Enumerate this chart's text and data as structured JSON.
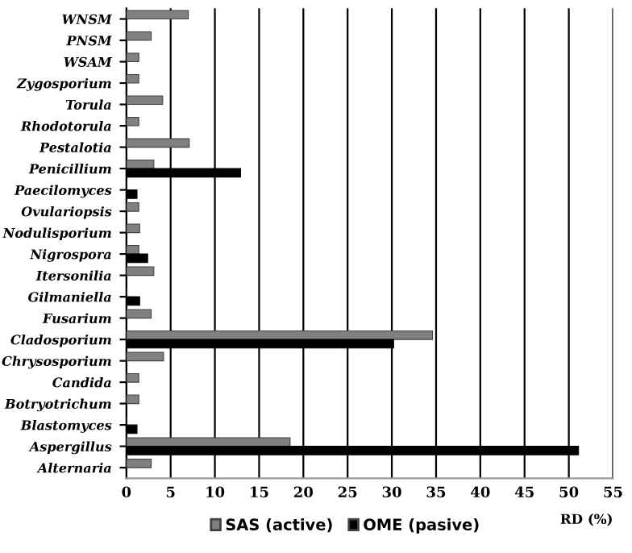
{
  "chart_data": {
    "type": "bar",
    "orientation": "horizontal",
    "xlabel": "RD (%)",
    "categories": [
      "WNSM",
      "PNSM",
      "WSAM",
      "Zygosporium",
      "Torula",
      "Rhodotorula",
      "Pestalotia",
      "Penicillium",
      "Paecilomyces",
      "Ovulariopsis",
      "Nodulisporium",
      "Nigrospora",
      "Itersonilia",
      "Gilmaniella",
      "Fusarium",
      "Cladosporium",
      "Chrysosporium",
      "Candida",
      "Botryotrichum",
      "Blastomyces",
      "Aspergillus",
      "Alternaria"
    ],
    "series": [
      {
        "name": "SAS (active)",
        "color": "#808080",
        "values": [
          7,
          2.8,
          1.4,
          1.4,
          4.1,
          1.4,
          7.1,
          3.1,
          null,
          1.4,
          1.5,
          1.4,
          3.1,
          null,
          2.8,
          34.6,
          4.2,
          1.4,
          1.4,
          null,
          18.5,
          2.8
        ]
      },
      {
        "name": "OME (pasive)",
        "color": "#000000",
        "values": [
          null,
          null,
          null,
          null,
          null,
          null,
          null,
          12.9,
          1.2,
          null,
          null,
          2.4,
          null,
          1.5,
          null,
          30.2,
          null,
          null,
          null,
          1.2,
          51.1,
          null
        ]
      }
    ],
    "xlim": [
      0,
      55
    ],
    "xticks": [
      0,
      5,
      10,
      15,
      20,
      25,
      30,
      35,
      40,
      45,
      50,
      55
    ],
    "grid": "x",
    "legend": "bottom"
  }
}
